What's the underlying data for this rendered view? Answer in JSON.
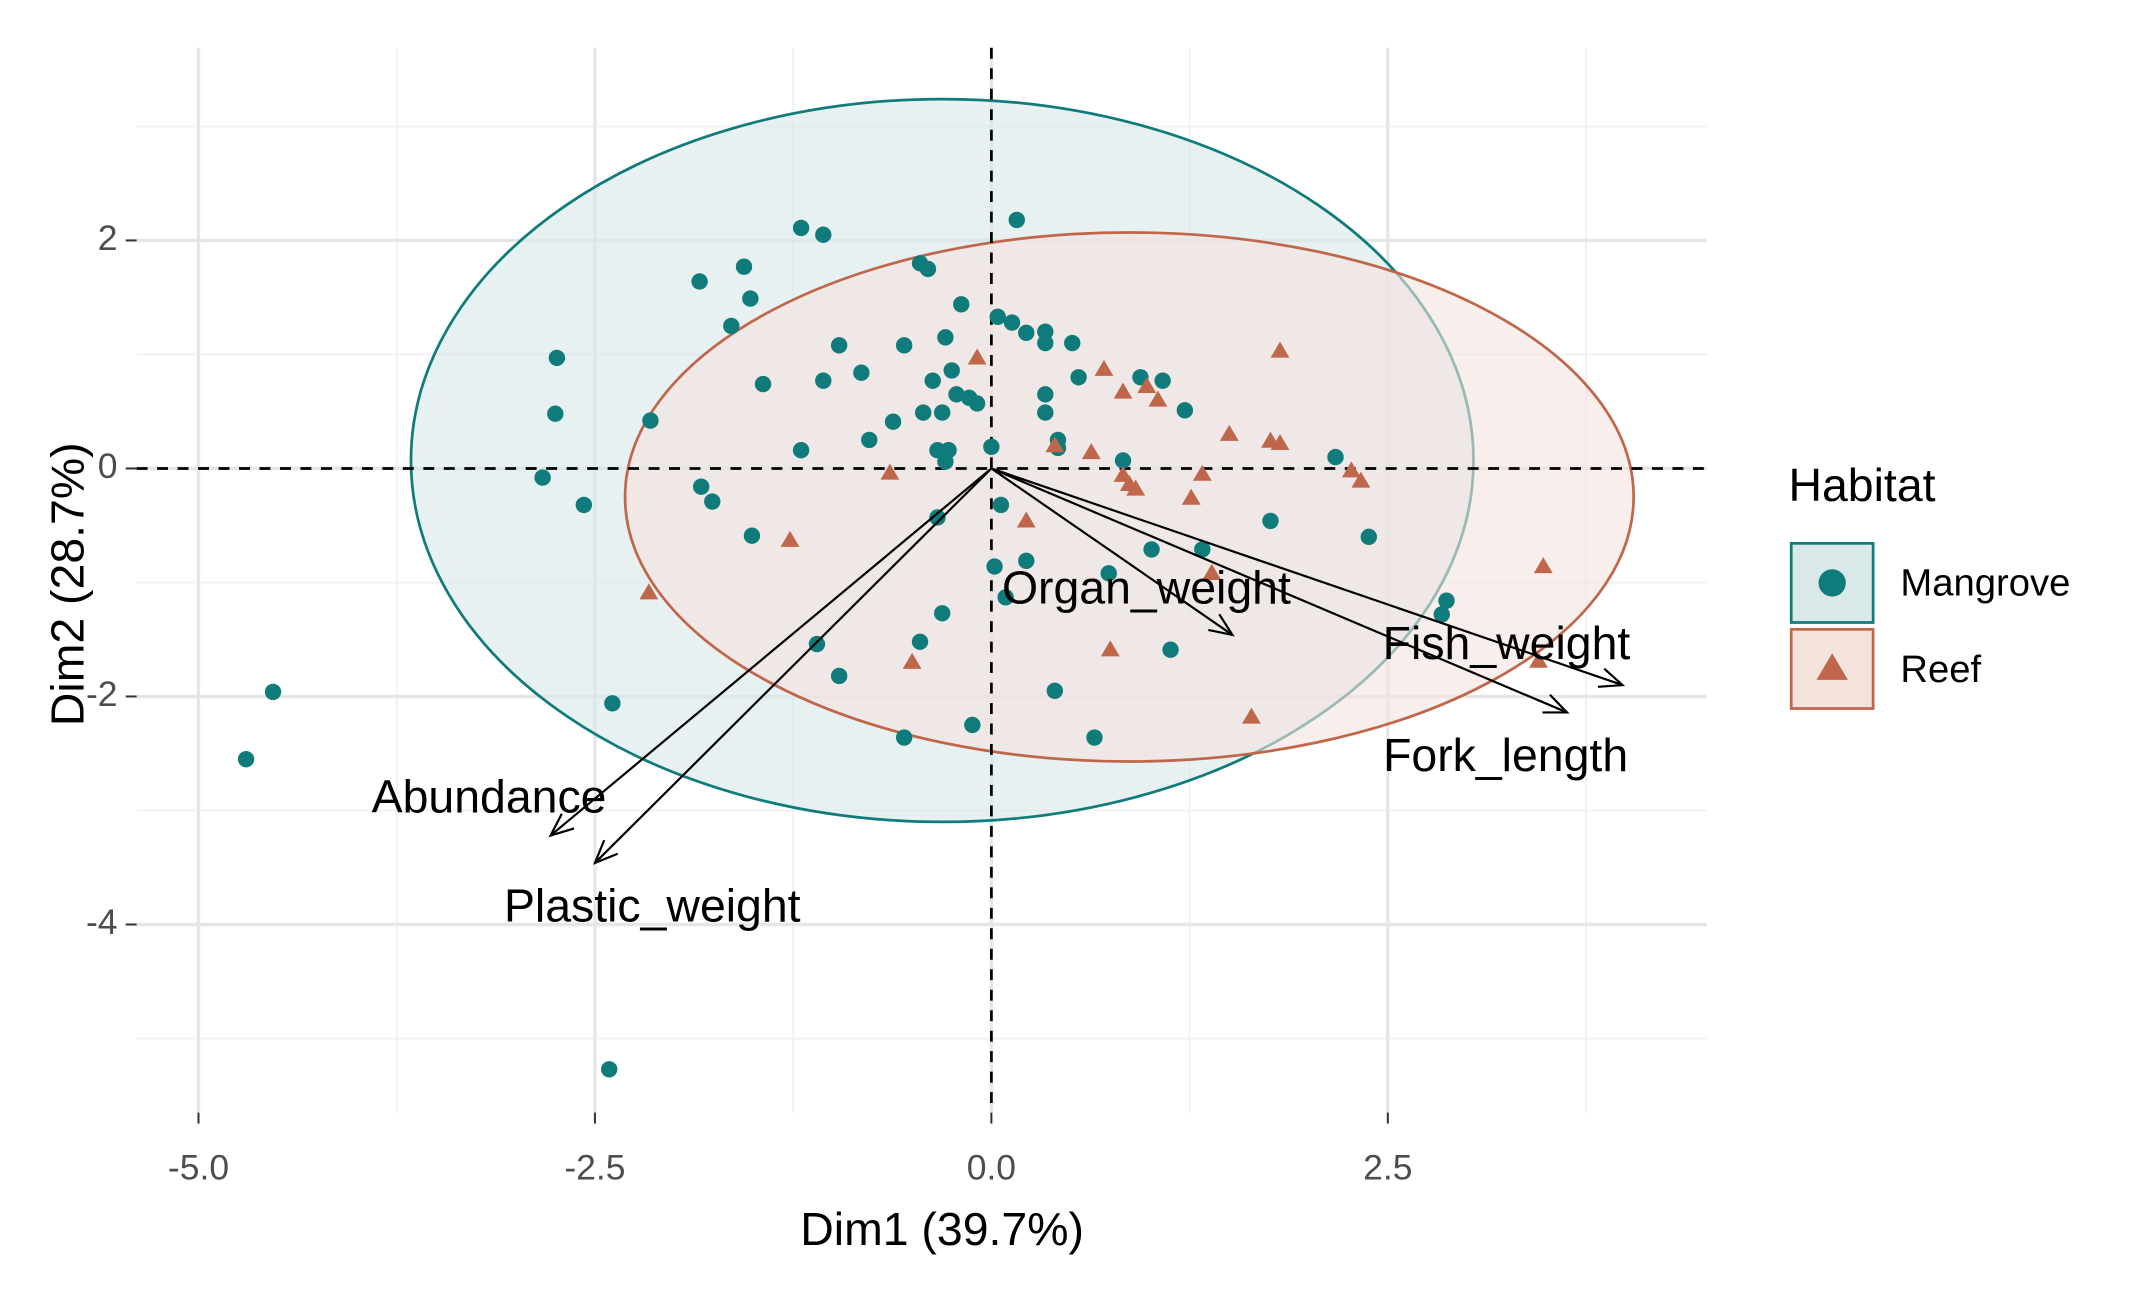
{
  "chart_data": {
    "type": "pca-biplot",
    "x_label": "Dim1 (39.7%)",
    "y_label": "Dim2 (28.7%)",
    "legend_title": "Habitat",
    "legend_position": "right",
    "grid": true,
    "xlim": [
      -5.39,
      4.51
    ],
    "ylim": [
      -5.65,
      3.69
    ],
    "xticks": [
      {
        "value": -5,
        "label": "-5.0"
      },
      {
        "value": -2.5,
        "label": "-2.5"
      },
      {
        "value": 0,
        "label": "0.0"
      },
      2.5
    ],
    "yticks": [
      -4,
      -2,
      0,
      2
    ],
    "xminor": [
      -3.75,
      -1.25,
      1.25,
      3.75
    ],
    "yminor": [
      -5,
      -3,
      -1,
      1,
      3
    ],
    "series": [
      {
        "name": "Mangrove",
        "color": "#107b7b",
        "fill": "#d9e8e9",
        "marker": "circle",
        "x": [
          -1.2,
          -1.06,
          0.16,
          -1.84,
          -1.56,
          -1.52,
          -1.64,
          -0.45,
          -0.4,
          -0.19,
          -2.74,
          -2.75,
          -2.83,
          -2.57,
          -2.15,
          -1.44,
          -0.96,
          -0.82,
          -1.06,
          -1.2,
          -0.77,
          -0.62,
          -0.55,
          -0.29,
          -0.25,
          -0.37,
          -0.22,
          -0.14,
          -0.09,
          -0.43,
          -0.31,
          -0.34,
          -0.27,
          -0.29,
          0.0,
          0.04,
          0.13,
          0.22,
          0.34,
          0.34,
          0.51,
          0.55,
          0.34,
          0.34,
          0.42,
          0.42,
          0.94,
          1.08,
          1.22,
          0.83,
          2.17,
          1.76,
          2.38,
          2.87,
          2.84,
          1.33,
          1.01,
          0.74,
          0.22,
          0.06,
          0.09,
          -0.31,
          -0.34,
          -0.45,
          -1.1,
          -0.96,
          -1.51,
          -1.76,
          -1.83,
          -2.39,
          -4.53,
          -4.7,
          -2.41,
          -0.55,
          -0.12,
          0.4,
          0.65,
          1.13,
          0.02
        ],
        "values": [
          2.11,
          2.05,
          2.18,
          1.64,
          1.77,
          1.49,
          1.25,
          1.8,
          1.75,
          1.44,
          0.97,
          0.48,
          -0.08,
          -0.32,
          0.42,
          0.74,
          1.08,
          0.84,
          0.77,
          0.16,
          0.25,
          0.41,
          1.08,
          1.15,
          0.86,
          0.77,
          0.65,
          0.62,
          0.57,
          0.49,
          0.49,
          0.16,
          0.16,
          0.06,
          0.19,
          1.33,
          1.28,
          1.19,
          1.2,
          1.1,
          1.1,
          0.8,
          0.65,
          0.49,
          0.25,
          0.18,
          0.8,
          0.77,
          0.51,
          0.07,
          0.1,
          -0.46,
          -0.6,
          -1.16,
          -1.28,
          -0.71,
          -0.71,
          -0.92,
          -0.81,
          -0.32,
          -1.13,
          -1.27,
          -0.43,
          -1.52,
          -1.54,
          -1.82,
          -0.59,
          -0.29,
          -0.16,
          -2.06,
          -1.96,
          -2.55,
          -5.27,
          -2.36,
          -2.25,
          -1.95,
          -2.36,
          -1.59,
          -0.86
        ],
        "ellipse": {
          "center": [
            -0.31,
            0.07
          ],
          "radii": [
            3.35,
            3.17
          ]
        }
      },
      {
        "name": "Reef",
        "color": "#c0664b",
        "fill": "#f4e3dd",
        "marker": "triangle",
        "x": [
          -0.09,
          0.71,
          0.83,
          0.98,
          1.05,
          1.82,
          1.5,
          1.76,
          1.82,
          0.63,
          0.4,
          0.83,
          0.87,
          0.91,
          1.33,
          1.26,
          2.27,
          2.33,
          3.48,
          3.45,
          1.64,
          0.75,
          -0.5,
          0.22,
          -0.64,
          -1.27,
          -2.16,
          1.39
        ],
        "values": [
          0.97,
          0.87,
          0.67,
          0.72,
          0.6,
          1.03,
          0.3,
          0.24,
          0.22,
          0.14,
          0.2,
          -0.06,
          -0.14,
          -0.18,
          -0.05,
          -0.26,
          -0.02,
          -0.11,
          -0.86,
          -1.69,
          -2.18,
          -1.59,
          -1.7,
          -0.46,
          -0.04,
          -0.63,
          -1.09,
          -0.92
        ],
        "ellipse": {
          "center": [
            0.87,
            -0.25
          ],
          "radii": [
            3.18,
            2.32
          ]
        }
      }
    ],
    "variables": [
      {
        "name": "Abundance",
        "x": -2.78,
        "y": -3.22
      },
      {
        "name": "Plastic_weight",
        "x": -2.5,
        "y": -3.46
      },
      {
        "name": "Organ_weight",
        "x": 1.52,
        "y": -1.46
      },
      {
        "name": "Fish_weight",
        "x": 3.98,
        "y": -1.9
      },
      {
        "name": "Fork_length",
        "x": 3.63,
        "y": -2.14
      }
    ]
  }
}
